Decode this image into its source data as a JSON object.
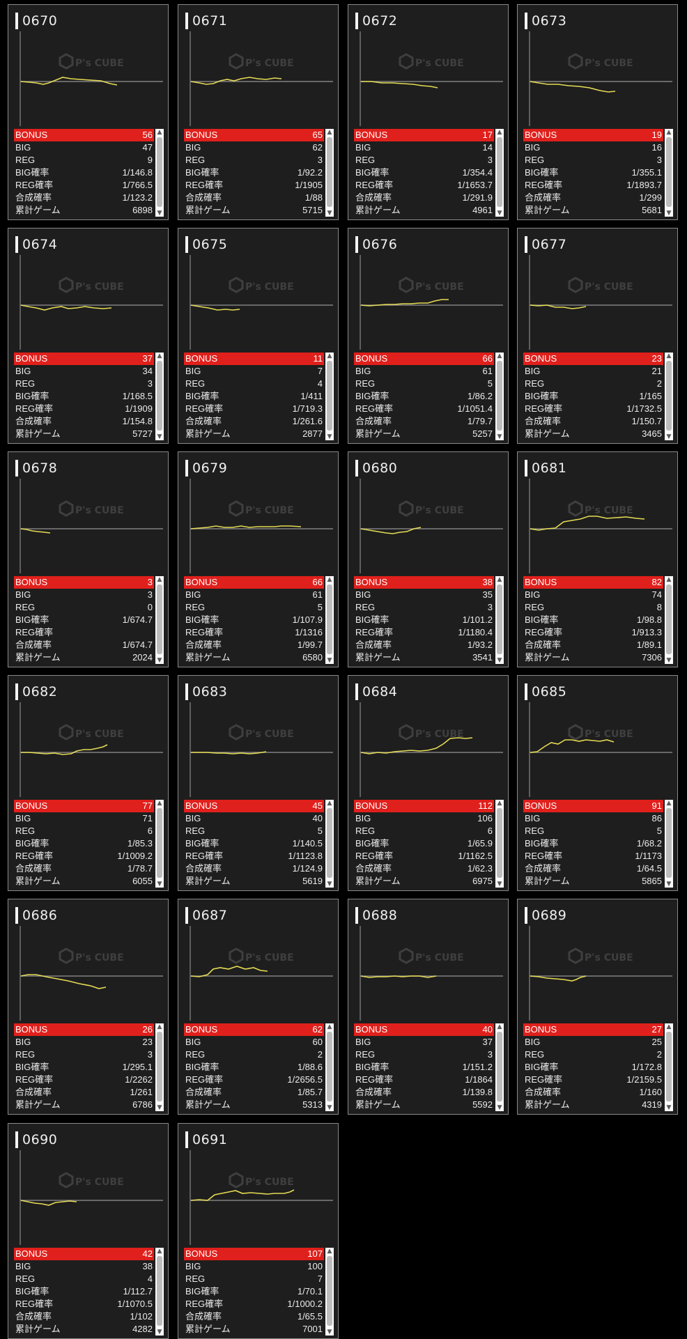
{
  "labels": {
    "bonus": "BONUS",
    "big": "BIG",
    "reg": "REG",
    "big_rate": "BIG確率",
    "reg_rate": "REG確率",
    "total_rate": "合成確率",
    "games": "累計ゲーム"
  },
  "watermark": {
    "text": "P's CUBE",
    "icon": "cube-logo-icon"
  },
  "colors": {
    "bonus_bar": "#e0201c",
    "graph_line": "#e6dc55",
    "baseline": "#808080",
    "card_bg": "#1e1e1e",
    "page_bg": "#000000"
  },
  "scroll_icons": {
    "up": "▲",
    "down": "▼"
  },
  "machines": [
    {
      "id": "0670",
      "bonus": "56",
      "big": "47",
      "reg": "9",
      "big_rate": "1/146.8",
      "reg_rate": "1/766.5",
      "total_rate": "1/123.2",
      "games": "6898"
    },
    {
      "id": "0671",
      "bonus": "65",
      "big": "62",
      "reg": "3",
      "big_rate": "1/92.2",
      "reg_rate": "1/1905",
      "total_rate": "1/88",
      "games": "5715"
    },
    {
      "id": "0672",
      "bonus": "17",
      "big": "14",
      "reg": "3",
      "big_rate": "1/354.4",
      "reg_rate": "1/1653.7",
      "total_rate": "1/291.9",
      "games": "4961"
    },
    {
      "id": "0673",
      "bonus": "19",
      "big": "16",
      "reg": "3",
      "big_rate": "1/355.1",
      "reg_rate": "1/1893.7",
      "total_rate": "1/299",
      "games": "5681"
    },
    {
      "id": "0674",
      "bonus": "37",
      "big": "34",
      "reg": "3",
      "big_rate": "1/168.5",
      "reg_rate": "1/1909",
      "total_rate": "1/154.8",
      "games": "5727"
    },
    {
      "id": "0675",
      "bonus": "11",
      "big": "7",
      "reg": "4",
      "big_rate": "1/411",
      "reg_rate": "1/719.3",
      "total_rate": "1/261.6",
      "games": "2877"
    },
    {
      "id": "0676",
      "bonus": "66",
      "big": "61",
      "reg": "5",
      "big_rate": "1/86.2",
      "reg_rate": "1/1051.4",
      "total_rate": "1/79.7",
      "games": "5257"
    },
    {
      "id": "0677",
      "bonus": "23",
      "big": "21",
      "reg": "2",
      "big_rate": "1/165",
      "reg_rate": "1/1732.5",
      "total_rate": "1/150.7",
      "games": "3465"
    },
    {
      "id": "0678",
      "bonus": "3",
      "big": "3",
      "reg": "0",
      "big_rate": "1/674.7",
      "reg_rate": "",
      "total_rate": "1/674.7",
      "games": "2024"
    },
    {
      "id": "0679",
      "bonus": "66",
      "big": "61",
      "reg": "5",
      "big_rate": "1/107.9",
      "reg_rate": "1/1316",
      "total_rate": "1/99.7",
      "games": "6580"
    },
    {
      "id": "0680",
      "bonus": "38",
      "big": "35",
      "reg": "3",
      "big_rate": "1/101.2",
      "reg_rate": "1/1180.4",
      "total_rate": "1/93.2",
      "games": "3541"
    },
    {
      "id": "0681",
      "bonus": "82",
      "big": "74",
      "reg": "8",
      "big_rate": "1/98.8",
      "reg_rate": "1/913.3",
      "total_rate": "1/89.1",
      "games": "7306"
    },
    {
      "id": "0682",
      "bonus": "77",
      "big": "71",
      "reg": "6",
      "big_rate": "1/85.3",
      "reg_rate": "1/1009.2",
      "total_rate": "1/78.7",
      "games": "6055"
    },
    {
      "id": "0683",
      "bonus": "45",
      "big": "40",
      "reg": "5",
      "big_rate": "1/140.5",
      "reg_rate": "1/1123.8",
      "total_rate": "1/124.9",
      "games": "5619"
    },
    {
      "id": "0684",
      "bonus": "112",
      "big": "106",
      "reg": "6",
      "big_rate": "1/65.9",
      "reg_rate": "1/1162.5",
      "total_rate": "1/62.3",
      "games": "6975"
    },
    {
      "id": "0685",
      "bonus": "91",
      "big": "86",
      "reg": "5",
      "big_rate": "1/68.2",
      "reg_rate": "1/1173",
      "total_rate": "1/64.5",
      "games": "5865"
    },
    {
      "id": "0686",
      "bonus": "26",
      "big": "23",
      "reg": "3",
      "big_rate": "1/295.1",
      "reg_rate": "1/2262",
      "total_rate": "1/261",
      "games": "6786"
    },
    {
      "id": "0687",
      "bonus": "62",
      "big": "60",
      "reg": "2",
      "big_rate": "1/88.6",
      "reg_rate": "1/2656.5",
      "total_rate": "1/85.7",
      "games": "5313"
    },
    {
      "id": "0688",
      "bonus": "40",
      "big": "37",
      "reg": "3",
      "big_rate": "1/151.2",
      "reg_rate": "1/1864",
      "total_rate": "1/139.8",
      "games": "5592"
    },
    {
      "id": "0689",
      "bonus": "27",
      "big": "25",
      "reg": "2",
      "big_rate": "1/172.8",
      "reg_rate": "1/2159.5",
      "total_rate": "1/160",
      "games": "4319"
    },
    {
      "id": "0690",
      "bonus": "42",
      "big": "38",
      "reg": "4",
      "big_rate": "1/112.7",
      "reg_rate": "1/1070.5",
      "total_rate": "1/102",
      "games": "4282"
    },
    {
      "id": "0691",
      "bonus": "107",
      "big": "100",
      "reg": "7",
      "big_rate": "1/70.1",
      "reg_rate": "1/1000.2",
      "total_rate": "1/65.5",
      "games": "7001"
    }
  ]
}
